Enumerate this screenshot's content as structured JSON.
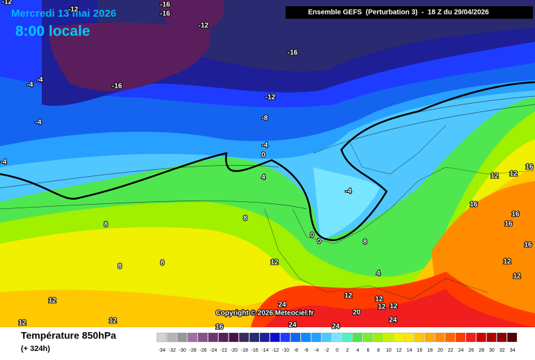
{
  "header": {
    "date": "Mercredi 13 mai 2026",
    "time": "8:00 locale",
    "model": "Ensemble GEFS  (Perturbation 3)  -  18 Z du 29/04/2026"
  },
  "copyright": "Copyright © 2026 Meteociel.fr",
  "footer": {
    "title": "Température 850hPa",
    "lead": "(+ 324h)"
  },
  "legend": {
    "values": [
      -34,
      -32,
      -30,
      -28,
      -26,
      -24,
      -22,
      -20,
      -18,
      -16,
      -14,
      -12,
      -10,
      -8,
      -6,
      -4,
      -2,
      0,
      2,
      4,
      6,
      8,
      10,
      12,
      14,
      16,
      18,
      20,
      22,
      24,
      26,
      28,
      30,
      32,
      34
    ],
    "colors": [
      "#d2d2d2",
      "#b4b4b4",
      "#969696",
      "#a070a0",
      "#86508a",
      "#6e3472",
      "#5a1e5c",
      "#4a1048",
      "#3c2a5a",
      "#2a2a70",
      "#1e1e96",
      "#0a0ad2",
      "#1e3cff",
      "#1464f0",
      "#0a8cff",
      "#28a0ff",
      "#50c8ff",
      "#78e6ff",
      "#50f0c8",
      "#50e650",
      "#78f028",
      "#a0f000",
      "#c8f000",
      "#f0f000",
      "#ffe600",
      "#ffc800",
      "#ffaa00",
      "#ff8c00",
      "#ff6400",
      "#ff3c00",
      "#f01e1e",
      "#d20000",
      "#b40000",
      "#8c0000",
      "#500000"
    ]
  },
  "contour_labels": [
    -12,
    -12,
    -16,
    -16,
    -12,
    -16,
    -4,
    -4,
    -16,
    -12,
    -8,
    -4,
    -4,
    0,
    -4,
    4,
    -4,
    12,
    12,
    16,
    16,
    16,
    16,
    16,
    8,
    8,
    0,
    0,
    8,
    8,
    8,
    12,
    4,
    12,
    12,
    12,
    12,
    12,
    12,
    12,
    12,
    12,
    24,
    20,
    24,
    24,
    24,
    16
  ]
}
